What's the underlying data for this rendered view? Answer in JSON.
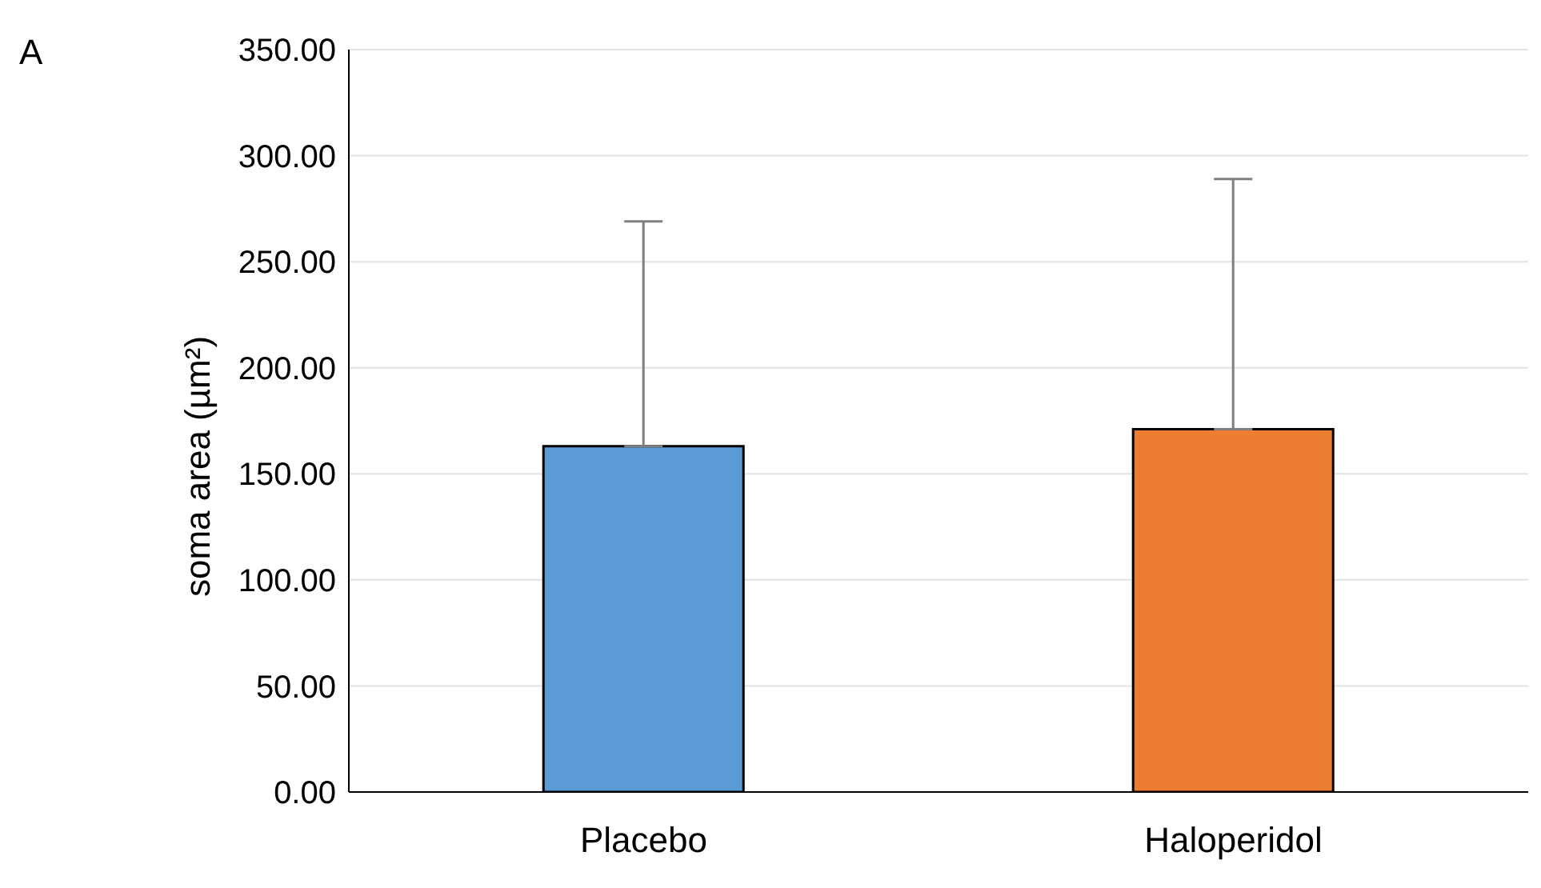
{
  "chart_data": {
    "type": "bar",
    "ylabel": "soma area (µm²)",
    "annotations": [
      "A"
    ],
    "categories": [
      "Placebo",
      "Haloperidol"
    ],
    "values": [
      163,
      171
    ],
    "colors": [
      "#5b9bd5",
      "#ed7d31"
    ],
    "errors": [
      [
        163,
        269
      ],
      [
        171,
        289
      ]
    ],
    "ylim": [
      0,
      350
    ],
    "yticks": [
      {
        "value": 0,
        "label": "0.00"
      },
      {
        "value": 50,
        "label": "50.00"
      },
      {
        "value": 100,
        "label": "100.00"
      },
      {
        "value": 150,
        "label": "150.00"
      },
      {
        "value": 200,
        "label": "200.00"
      },
      {
        "value": 250,
        "label": "250.00"
      },
      {
        "value": 300,
        "label": "300.00"
      },
      {
        "value": 350,
        "label": "350.00"
      }
    ],
    "grid": "y"
  }
}
